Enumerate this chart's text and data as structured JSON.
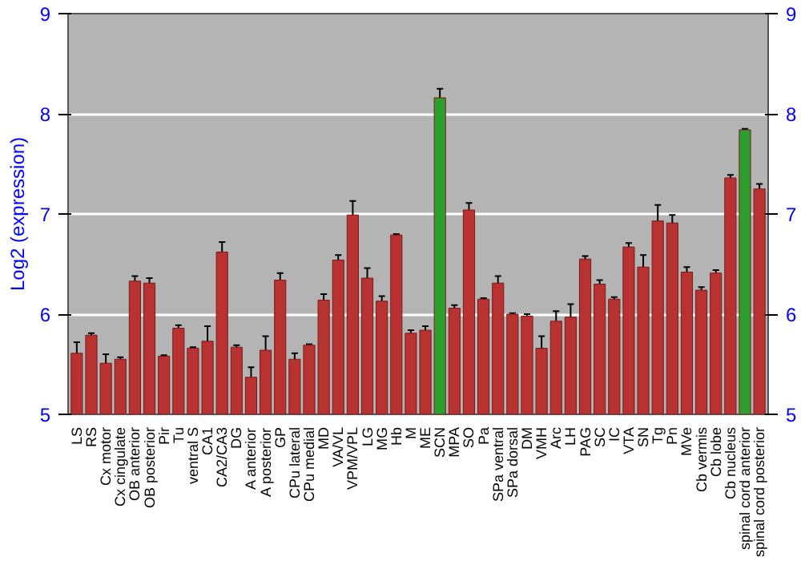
{
  "chart_data": {
    "type": "bar",
    "ylabel": "Log2 (expression)",
    "categories": [
      "LS",
      "RS",
      "Cx motor",
      "Cx cingulate",
      "OB anterior",
      "OB posterior",
      "Pir",
      "Tu",
      "ventral S",
      "CA1",
      "CA2/CA3",
      "DG",
      "A anterior",
      "A posterior",
      "GP",
      "CPu lateral",
      "CPu medial",
      "MD",
      "VA/VL",
      "VPM/VPL",
      "LG",
      "MG",
      "Hb",
      "M",
      "ME",
      "SCN",
      "MPA",
      "SO",
      "Pa",
      "SPa ventral",
      "SPa dorsal",
      "DM",
      "VMH",
      "Arc",
      "LH",
      "PAG",
      "SC",
      "IC",
      "VTA",
      "SN",
      "Tg",
      "Pn",
      "MVe",
      "Cb vermis",
      "Cb lobe",
      "Cb nucleus",
      "spinal cord anterior",
      "spinal cord posterior"
    ],
    "values": [
      5.61,
      5.79,
      5.51,
      5.55,
      6.33,
      6.31,
      5.58,
      5.86,
      5.66,
      5.73,
      6.62,
      5.67,
      5.37,
      5.64,
      6.34,
      5.55,
      5.69,
      6.14,
      6.54,
      6.99,
      6.36,
      6.13,
      6.79,
      5.81,
      5.84,
      8.16,
      6.06,
      7.04,
      6.15,
      6.31,
      6.0,
      5.98,
      5.66,
      5.93,
      5.97,
      6.55,
      6.3,
      6.15,
      6.67,
      6.47,
      6.93,
      6.91,
      6.42,
      6.24,
      6.41,
      7.36,
      7.84,
      7.25
    ],
    "errors": [
      0.11,
      0.02,
      0.09,
      0.02,
      0.05,
      0.05,
      0.01,
      0.03,
      0.01,
      0.15,
      0.1,
      0.02,
      0.1,
      0.14,
      0.07,
      0.06,
      0.01,
      0.06,
      0.05,
      0.14,
      0.1,
      0.05,
      0.01,
      0.03,
      0.04,
      0.09,
      0.03,
      0.07,
      0.01,
      0.07,
      0.01,
      0.02,
      0.12,
      0.1,
      0.13,
      0.03,
      0.04,
      0.02,
      0.04,
      0.12,
      0.16,
      0.08,
      0.05,
      0.03,
      0.03,
      0.03,
      0.01,
      0.05
    ],
    "colors": [
      "#b83232",
      "#b83232",
      "#b83232",
      "#b83232",
      "#b83232",
      "#b83232",
      "#b83232",
      "#b83232",
      "#b83232",
      "#b83232",
      "#b83232",
      "#b83232",
      "#b83232",
      "#b83232",
      "#b83232",
      "#b83232",
      "#b83232",
      "#b83232",
      "#b83232",
      "#b83232",
      "#b83232",
      "#b83232",
      "#b83232",
      "#b83232",
      "#b83232",
      "#2e9e2e",
      "#b83232",
      "#b83232",
      "#b83232",
      "#b83232",
      "#b83232",
      "#b83232",
      "#b83232",
      "#b83232",
      "#b83232",
      "#b83232",
      "#b83232",
      "#b83232",
      "#b83232",
      "#b83232",
      "#b83232",
      "#b83232",
      "#b83232",
      "#b83232",
      "#b83232",
      "#b83232",
      "#2e9e2e",
      "#b83232"
    ],
    "ylim": [
      5,
      9
    ],
    "yticks": [
      5,
      6,
      7,
      8,
      9
    ],
    "y2lim": [
      5,
      9
    ],
    "y2ticks": [
      5,
      6,
      7,
      8,
      9
    ],
    "grid": "y"
  }
}
